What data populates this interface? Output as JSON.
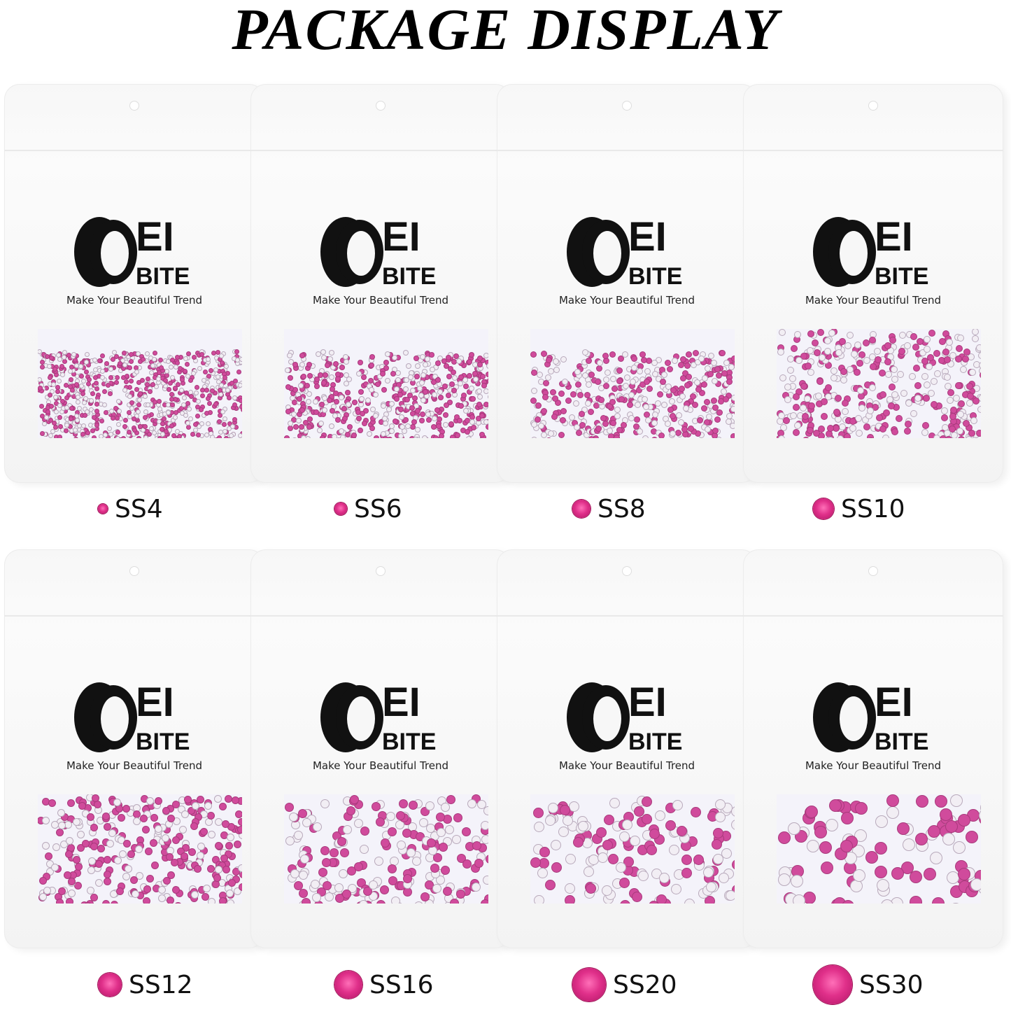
{
  "title": "PACKAGE DISPLAY",
  "brand": {
    "logo_text": "OEI BITE",
    "tagline": "Make Your Beautiful Trend"
  },
  "colors": {
    "gem": "#e0308a",
    "background": "#ffffff"
  },
  "bags": [
    {
      "size_label": "SS4",
      "gem_icon": "pink-rhinestone-icon"
    },
    {
      "size_label": "SS6",
      "gem_icon": "pink-rhinestone-icon"
    },
    {
      "size_label": "SS8",
      "gem_icon": "pink-rhinestone-icon"
    },
    {
      "size_label": "SS10",
      "gem_icon": "pink-rhinestone-icon"
    },
    {
      "size_label": "SS12",
      "gem_icon": "pink-rhinestone-icon"
    },
    {
      "size_label": "SS16",
      "gem_icon": "pink-rhinestone-icon"
    },
    {
      "size_label": "SS20",
      "gem_icon": "pink-rhinestone-icon"
    },
    {
      "size_label": "SS30",
      "gem_icon": "pink-rhinestone-icon"
    }
  ]
}
